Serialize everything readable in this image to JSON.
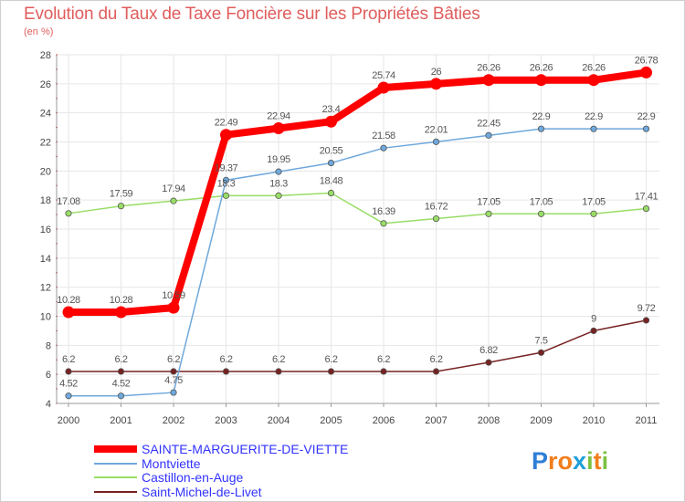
{
  "header": {
    "title": "Evolution du Taux de Taxe Foncière sur les Propriétés Bâties",
    "unit": "(en %)"
  },
  "logo": {
    "text": "Proxiti",
    "letters": [
      "P",
      "r",
      "o",
      "x",
      "i",
      "t",
      "i"
    ],
    "colors": [
      "#2e7fd6",
      "#f07f1e",
      "#f07f1e",
      "#1f9fd8",
      "#7cc242",
      "#f07f1e",
      "#7cc242"
    ]
  },
  "chart_data": {
    "type": "line",
    "title": "Evolution du Taux de Taxe Foncière sur les Propriétés Bâties",
    "ylabel": "(en %)",
    "xlabel": "",
    "x": [
      "2000",
      "2001",
      "2002",
      "2003",
      "2004",
      "2005",
      "2006",
      "2007",
      "2008",
      "2009",
      "2010",
      "2011"
    ],
    "ylim": [
      4,
      28
    ],
    "yticks": [
      "4",
      "6",
      "8",
      "10",
      "12",
      "14",
      "16",
      "18",
      "20",
      "22",
      "24",
      "26",
      "28"
    ],
    "grid": true,
    "legend_position": "bottom-left",
    "series": [
      {
        "name": "SAINTE-MARGUERITE-DE-VIETTE",
        "color": "#ff0000",
        "legend_color": "#3333ff",
        "width": 8,
        "values": [
          10.28,
          10.28,
          10.59,
          22.49,
          22.94,
          23.4,
          25.74,
          26,
          26.26,
          26.26,
          26.26,
          26.78
        ],
        "labels": [
          "10.28",
          "10.28",
          "10.59",
          "22.49",
          "22.94",
          "23.4",
          "25.74",
          "26",
          "26.26",
          "26.26",
          "26.26",
          "26.78"
        ]
      },
      {
        "name": "Montviette",
        "color": "#6fa8dc",
        "legend_color": "#3333ff",
        "width": 1.5,
        "values": [
          4.52,
          4.52,
          4.75,
          19.37,
          19.95,
          20.55,
          21.58,
          22.01,
          22.45,
          22.9,
          22.9,
          22.9
        ],
        "labels": [
          "4.52",
          "4.52",
          "4.75",
          "19.37",
          "19.95",
          "20.55",
          "21.58",
          "22.01",
          "22.45",
          "22.9",
          "22.9",
          "22.9"
        ]
      },
      {
        "name": "Castillon-en-Auge",
        "color": "#99dd66",
        "legend_color": "#3333ff",
        "width": 1.5,
        "values": [
          17.08,
          17.59,
          17.94,
          18.3,
          18.3,
          18.48,
          16.39,
          16.72,
          17.05,
          17.05,
          17.05,
          17.41
        ],
        "labels": [
          "17.08",
          "17.59",
          "17.94",
          "18.3",
          "18.3",
          "18.48",
          "16.39",
          "16.72",
          "17.05",
          "17.05",
          "17.05",
          "17.41"
        ]
      },
      {
        "name": "Saint-Michel-de-Livet",
        "color": "#772222",
        "legend_color": "#3333ff",
        "width": 1.5,
        "values": [
          6.2,
          6.2,
          6.2,
          6.2,
          6.2,
          6.2,
          6.2,
          6.2,
          6.82,
          7.5,
          9,
          9.72
        ],
        "labels": [
          "6.2",
          "6.2",
          "6.2",
          "6.2",
          "6.2",
          "6.2",
          "6.2",
          "6.2",
          "6.82",
          "7.5",
          "9",
          "9.72"
        ]
      }
    ]
  }
}
